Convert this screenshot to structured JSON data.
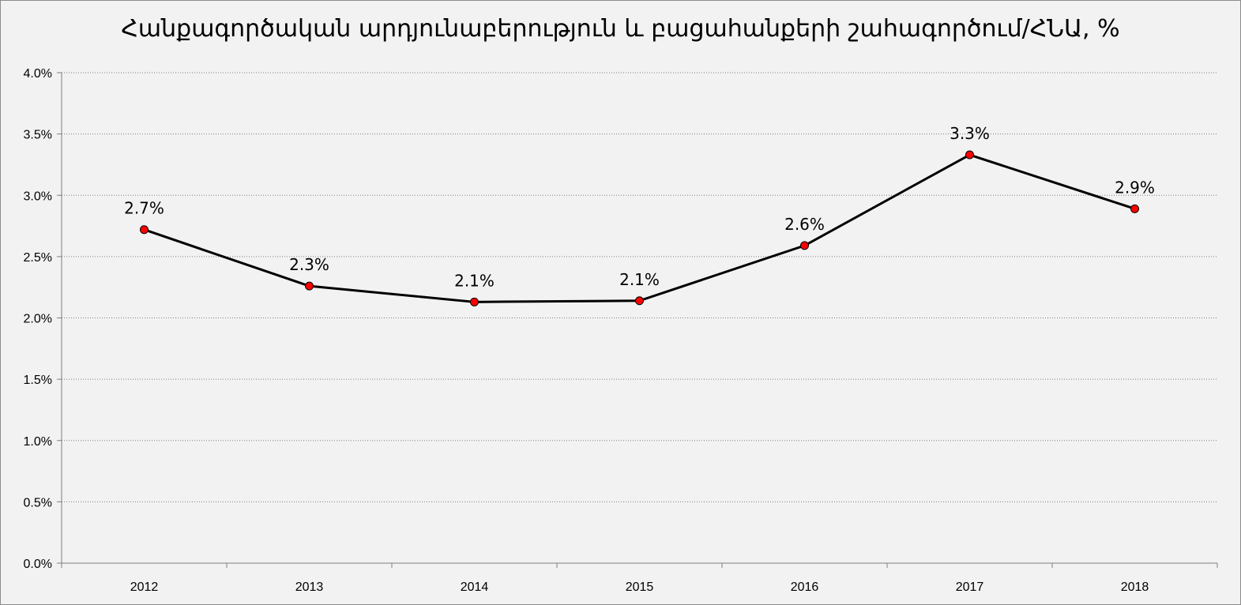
{
  "chart_data": {
    "type": "line",
    "title": "Հանքագործական արդյունաբերություն և բացահանքերի շահագործում/ՀՆԱ, %",
    "xlabel": "",
    "ylabel": "",
    "categories": [
      "2012",
      "2013",
      "2014",
      "2015",
      "2016",
      "2017",
      "2018"
    ],
    "series": [
      {
        "values": [
          2.72,
          2.26,
          2.13,
          2.14,
          2.59,
          3.33,
          2.89
        ],
        "labels": [
          "2.7%",
          "2.3%",
          "2.1%",
          "2.1%",
          "2.6%",
          "3.3%",
          "2.9%"
        ],
        "line_color": "#000000",
        "marker_color": "#ff0000"
      }
    ],
    "ylim": [
      0,
      4
    ],
    "yticks": [
      {
        "value": 0,
        "label": "0.0%"
      },
      {
        "value": 0.5,
        "label": "0.5%"
      },
      {
        "value": 1,
        "label": "1.0%"
      },
      {
        "value": 1.5,
        "label": "1.5%"
      },
      {
        "value": 2,
        "label": "2.0%"
      },
      {
        "value": 2.5,
        "label": "2.5%"
      },
      {
        "value": 3,
        "label": "3.0%"
      },
      {
        "value": 3.5,
        "label": "3.5%"
      },
      {
        "value": 4,
        "label": "4.0%"
      }
    ],
    "grid": true,
    "legend": "none",
    "background_color": "#f2f2f2"
  }
}
